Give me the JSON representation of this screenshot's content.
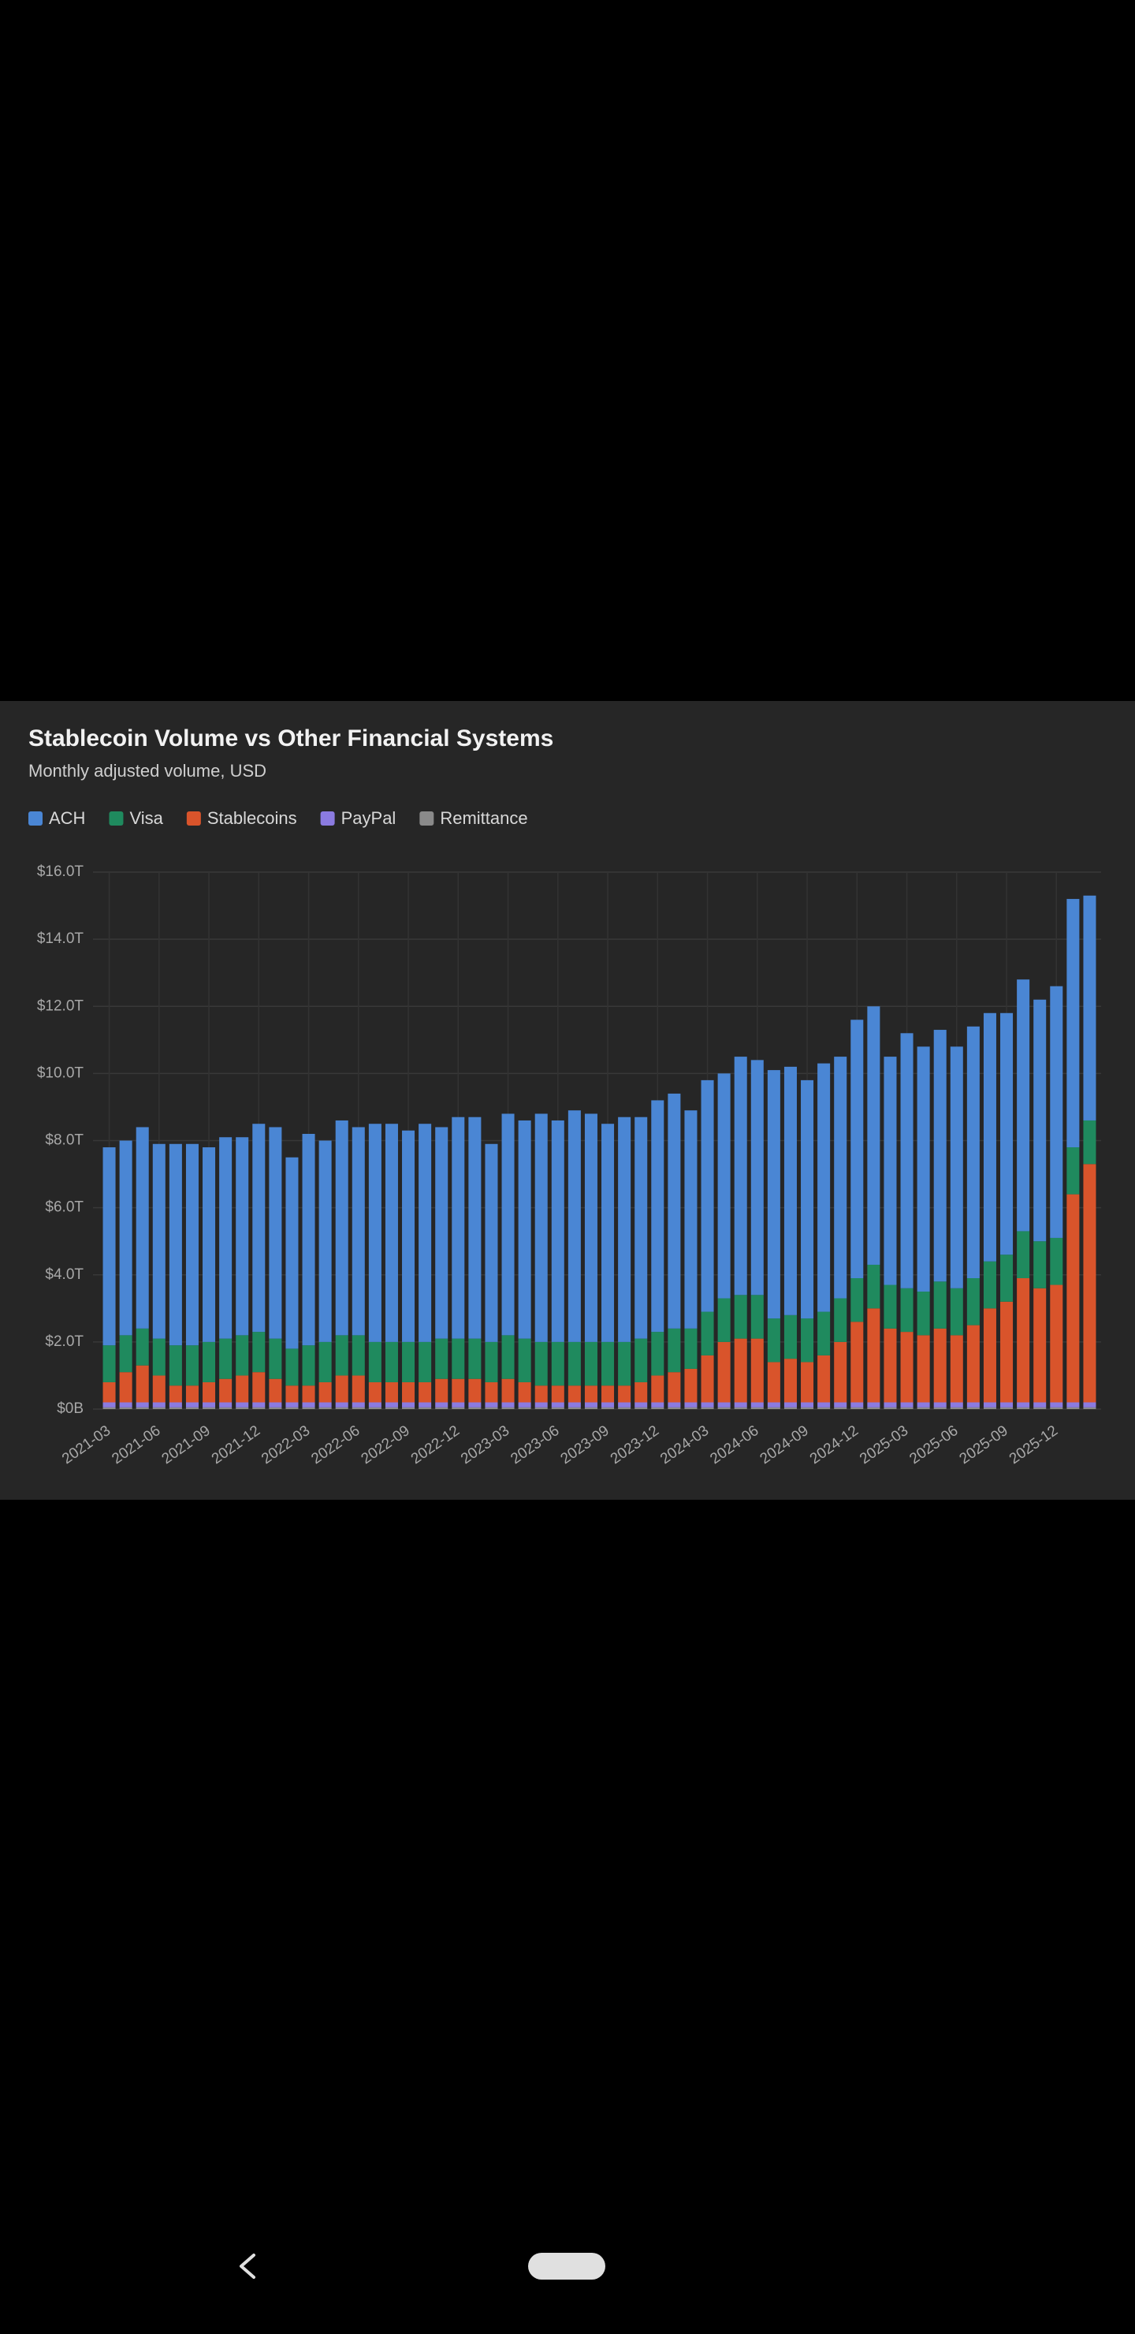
{
  "chart_data": {
    "type": "stacked_bar",
    "title": "Stablecoin Volume vs Other Financial Systems",
    "subtitle": "Monthly adjusted volume, USD",
    "categories": [
      "2021-03",
      null,
      null,
      "2021-06",
      null,
      null,
      "2021-09",
      null,
      null,
      "2021-12",
      null,
      null,
      "2022-03",
      null,
      null,
      "2022-06",
      null,
      null,
      "2022-09",
      null,
      null,
      "2022-12",
      null,
      null,
      "2023-03",
      null,
      null,
      "2023-06",
      null,
      null,
      "2023-09",
      null,
      null,
      "2023-12",
      null,
      null,
      "2024-03",
      null,
      null,
      "2024-06",
      null,
      null,
      "2024-09",
      null,
      null,
      "2024-12",
      null,
      null,
      "2025-03",
      null,
      null,
      "2025-06",
      null,
      null,
      "2025-09",
      null,
      null,
      "2025-12",
      null,
      null
    ],
    "series": [
      {
        "name": "ACH",
        "color": "#4a86d4",
        "values": [
          5.9,
          5.8,
          6.0,
          5.8,
          6.0,
          6.0,
          5.8,
          6.0,
          5.9,
          6.2,
          6.3,
          5.7,
          6.3,
          6.0,
          6.4,
          6.2,
          6.5,
          6.5,
          6.3,
          6.5,
          6.3,
          6.6,
          6.6,
          5.9,
          6.6,
          6.5,
          6.8,
          6.6,
          6.9,
          6.8,
          6.5,
          6.7,
          6.6,
          6.9,
          7.0,
          6.5,
          6.9,
          6.7,
          7.1,
          7.0,
          7.4,
          7.4,
          7.1,
          7.4,
          7.2,
          7.7,
          7.7,
          6.8,
          7.6,
          7.3,
          7.5,
          7.2,
          7.5,
          7.4,
          7.2,
          7.5,
          7.2,
          7.5,
          7.4,
          6.7
        ]
      },
      {
        "name": "Visa",
        "color": "#1f8a5e",
        "values": [
          1.1,
          1.1,
          1.1,
          1.1,
          1.2,
          1.2,
          1.2,
          1.2,
          1.2,
          1.2,
          1.2,
          1.1,
          1.2,
          1.2,
          1.2,
          1.2,
          1.2,
          1.2,
          1.2,
          1.2,
          1.2,
          1.2,
          1.2,
          1.2,
          1.3,
          1.3,
          1.3,
          1.3,
          1.3,
          1.3,
          1.3,
          1.3,
          1.3,
          1.3,
          1.3,
          1.2,
          1.3,
          1.3,
          1.3,
          1.3,
          1.3,
          1.3,
          1.3,
          1.3,
          1.3,
          1.3,
          1.3,
          1.3,
          1.3,
          1.3,
          1.4,
          1.4,
          1.4,
          1.4,
          1.4,
          1.4,
          1.4,
          1.4,
          1.4,
          1.3
        ]
      },
      {
        "name": "Stablecoins",
        "color": "#d9542b",
        "values": [
          0.6,
          0.9,
          1.1,
          0.8,
          0.5,
          0.5,
          0.6,
          0.7,
          0.8,
          0.9,
          0.7,
          0.5,
          0.5,
          0.6,
          0.8,
          0.8,
          0.6,
          0.6,
          0.6,
          0.6,
          0.7,
          0.7,
          0.7,
          0.6,
          0.7,
          0.6,
          0.5,
          0.5,
          0.5,
          0.5,
          0.5,
          0.5,
          0.6,
          0.8,
          0.9,
          1.0,
          1.4,
          1.8,
          1.9,
          1.9,
          1.2,
          1.3,
          1.2,
          1.4,
          1.8,
          2.4,
          2.8,
          2.2,
          2.1,
          2.0,
          2.2,
          2.0,
          2.3,
          2.8,
          3.0,
          3.7,
          3.4,
          3.5,
          6.2,
          7.1
        ]
      },
      {
        "name": "PayPal",
        "color": "#8b7be0",
        "values": [
          0.15,
          0.15,
          0.15,
          0.15,
          0.15,
          0.15,
          0.15,
          0.15,
          0.15,
          0.15,
          0.15,
          0.15,
          0.15,
          0.15,
          0.15,
          0.15,
          0.15,
          0.15,
          0.15,
          0.15,
          0.15,
          0.15,
          0.15,
          0.15,
          0.15,
          0.15,
          0.15,
          0.15,
          0.15,
          0.15,
          0.15,
          0.15,
          0.15,
          0.15,
          0.15,
          0.15,
          0.15,
          0.15,
          0.15,
          0.15,
          0.15,
          0.15,
          0.15,
          0.15,
          0.15,
          0.15,
          0.15,
          0.15,
          0.15,
          0.15,
          0.15,
          0.15,
          0.15,
          0.15,
          0.15,
          0.15,
          0.15,
          0.15,
          0.15,
          0.15
        ]
      },
      {
        "name": "Remittance",
        "color": "#8a8a8a",
        "values": [
          0.05,
          0.05,
          0.05,
          0.05,
          0.05,
          0.05,
          0.05,
          0.05,
          0.05,
          0.05,
          0.05,
          0.05,
          0.05,
          0.05,
          0.05,
          0.05,
          0.05,
          0.05,
          0.05,
          0.05,
          0.05,
          0.05,
          0.05,
          0.05,
          0.05,
          0.05,
          0.05,
          0.05,
          0.05,
          0.05,
          0.05,
          0.05,
          0.05,
          0.05,
          0.05,
          0.05,
          0.05,
          0.05,
          0.05,
          0.05,
          0.05,
          0.05,
          0.05,
          0.05,
          0.05,
          0.05,
          0.05,
          0.05,
          0.05,
          0.05,
          0.05,
          0.05,
          0.05,
          0.05,
          0.05,
          0.05,
          0.05,
          0.05,
          0.05,
          0.05
        ]
      }
    ],
    "ylim": [
      0,
      16
    ],
    "yticks": [
      {
        "value": 0,
        "label": "$0B"
      },
      {
        "value": 2,
        "label": "$2.0T"
      },
      {
        "value": 4,
        "label": "$4.0T"
      },
      {
        "value": 6,
        "label": "$6.0T"
      },
      {
        "value": 8,
        "label": "$8.0T"
      },
      {
        "value": 10,
        "label": "$10.0T"
      },
      {
        "value": 12,
        "label": "$12.0T"
      },
      {
        "value": 14,
        "label": "$14.0T"
      },
      {
        "value": 16,
        "label": "$16.0T"
      }
    ],
    "grid": true,
    "legend": "top-left"
  }
}
